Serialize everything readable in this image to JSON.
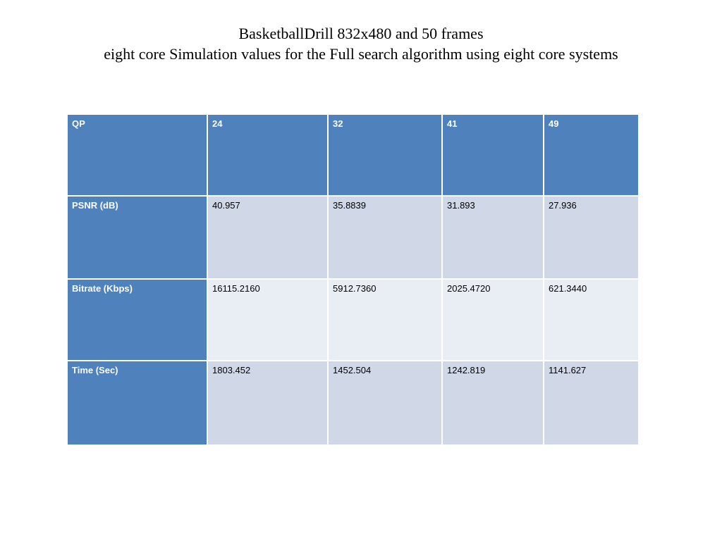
{
  "slide": {
    "title_line1": "BasketballDrill 832x480 and 50 frames",
    "title_line2": "eight core Simulation values for the Full search algorithm using eight core systems"
  },
  "table": {
    "header": [
      "QP",
      "24",
      "32",
      "41",
      "49"
    ],
    "rows": [
      {
        "label": "PSNR (dB)",
        "values": [
          "40.957",
          "35.8839",
          "31.893",
          "27.936"
        ]
      },
      {
        "label": "Bitrate (Kbps)",
        "values": [
          "16115.2160",
          "5912.7360",
          "2025.4720",
          "621.3440"
        ]
      },
      {
        "label": "Time (Sec)",
        "values": [
          "1803.452",
          "1452.504",
          "1242.819",
          "1141.627"
        ]
      }
    ]
  },
  "colors": {
    "header_fill": "#4f81bd",
    "band_dark": "#d0d8e8",
    "band_light": "#e9edf4"
  }
}
